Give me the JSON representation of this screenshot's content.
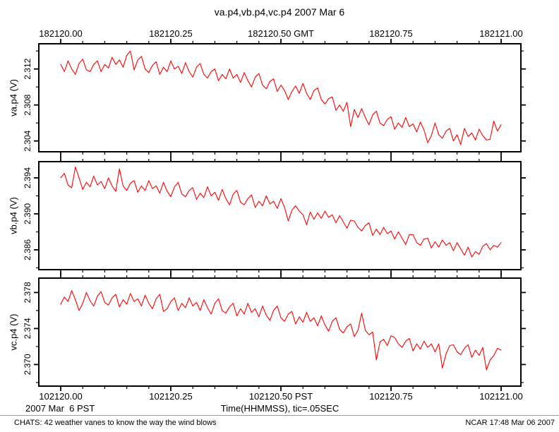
{
  "title": "va.p4,vb.p4,vc.p4 2007 Mar 6",
  "bottom_annotations": {
    "date": "2007 Mar  6 PST",
    "time_note": "Time(HHMMSS), tic=.05SEC"
  },
  "footer": {
    "left": "CHATS: 42 weather vanes to know the way the wind blows",
    "right": "NCAR 17:48 Mar 06 2007"
  },
  "chart_data": {
    "type": "line",
    "title": "va.p4,vb.p4,vc.p4 2007 Mar 6",
    "line_color": "#ff0000",
    "frame_color": "#000000",
    "grid": false,
    "legend": "none",
    "x_axis": {
      "top_ticks": [
        "182120.00",
        "182120.25",
        "182120.50 GMT",
        "182120.75",
        "182121.00"
      ],
      "bottom_ticks": [
        "102120.00",
        "102120.25",
        "102120.50 PST",
        "102120.75",
        "102121.00"
      ],
      "xlabel": "Time(HHMMSS), tic=.05SEC",
      "x_range_seconds": [
        0,
        1
      ],
      "major_tick_seconds": 0.25,
      "minor_tick_seconds": 0.05
    },
    "panels": [
      {
        "name": "va.p4",
        "ylabel": "va.p4 (V)",
        "yticks": [
          2.304,
          2.308,
          2.312
        ],
        "ytick_labels": [
          "2.304",
          "2.308",
          "2.312"
        ],
        "ymin": 2.3028,
        "ymax": 2.3148,
        "minor_ytick_step": 0.002,
        "values": [
          2.3125,
          2.3117,
          2.3129,
          2.312,
          2.3114,
          2.3126,
          2.3131,
          2.3119,
          2.3117,
          2.3125,
          2.3129,
          2.3117,
          2.3125,
          2.3121,
          2.3133,
          2.3125,
          2.313,
          2.3122,
          2.3135,
          2.314,
          2.3119,
          2.313,
          2.3134,
          2.312,
          2.3116,
          2.3124,
          2.3128,
          2.3114,
          2.3122,
          2.3117,
          2.3129,
          2.312,
          2.3123,
          2.3115,
          2.3127,
          2.3117,
          2.3111,
          2.3122,
          2.3126,
          2.3114,
          2.311,
          2.3117,
          2.312,
          2.3107,
          2.3114,
          2.3109,
          2.312,
          2.311,
          2.3114,
          2.3105,
          2.3116,
          2.3107,
          2.31,
          2.3111,
          2.3115,
          2.3102,
          2.3098,
          2.3106,
          2.3109,
          2.3095,
          2.3102,
          2.3096,
          2.3086,
          2.3095,
          2.3101,
          2.3093,
          2.3104,
          2.3093,
          2.3086,
          2.3096,
          2.3099,
          2.3086,
          2.3081,
          2.3087,
          2.3089,
          2.3074,
          2.308,
          2.3073,
          2.3083,
          2.3056,
          2.3075,
          2.3066,
          2.3076,
          2.3066,
          2.3058,
          2.3069,
          2.3073,
          2.306,
          2.3057,
          2.3064,
          2.3067,
          2.3053,
          2.306,
          2.3055,
          2.3066,
          2.3056,
          2.3059,
          2.305,
          2.3061,
          2.3052,
          2.3038,
          2.3046,
          2.306,
          2.3047,
          2.3043,
          2.3051,
          2.3054,
          2.304,
          2.3047,
          2.3036,
          2.3054,
          2.3045,
          2.3049,
          2.3041,
          2.3053,
          2.3046,
          2.3041,
          2.3042,
          2.3062,
          2.3051,
          2.3058
        ]
      },
      {
        "name": "vb.p4",
        "ylabel": "vb.p4 (V)",
        "yticks": [
          2.386,
          2.39,
          2.394
        ],
        "ytick_labels": [
          "2.386",
          "2.390",
          "2.394"
        ],
        "ymin": 2.3838,
        "ymax": 2.3958,
        "minor_ytick_step": 0.002,
        "values": [
          2.394,
          2.3945,
          2.3932,
          2.3929,
          2.3952,
          2.394,
          2.3927,
          2.3935,
          2.393,
          2.3942,
          2.3932,
          2.3936,
          2.3928,
          2.394,
          2.3931,
          2.3925,
          2.395,
          2.3931,
          2.3926,
          2.3934,
          2.3937,
          2.3924,
          2.3931,
          2.3926,
          2.3937,
          2.3928,
          2.3931,
          2.3923,
          2.3935,
          2.3925,
          2.3919,
          2.393,
          2.3935,
          2.3922,
          2.3919,
          2.3926,
          2.3929,
          2.3916,
          2.3923,
          2.3918,
          2.393,
          2.392,
          2.3924,
          2.3915,
          2.3927,
          2.3917,
          2.391,
          2.3922,
          2.3926,
          2.3913,
          2.391,
          2.3917,
          2.3921,
          2.3907,
          2.3914,
          2.3909,
          2.392,
          2.3911,
          2.3914,
          2.3906,
          2.3917,
          2.3907,
          2.3892,
          2.3904,
          2.3909,
          2.3903,
          2.3899,
          2.3888,
          2.3902,
          2.3894,
          2.3901,
          2.3895,
          2.3903,
          2.3896,
          2.3899,
          2.389,
          2.3898,
          2.3891,
          2.3884,
          2.3893,
          2.3892,
          2.3885,
          2.3881,
          2.3887,
          2.389,
          2.3876,
          2.3883,
          2.3877,
          2.3885,
          2.3878,
          2.3881,
          2.3872,
          2.388,
          2.3873,
          2.3866,
          2.3877,
          2.3877,
          2.3868,
          2.3865,
          2.3872,
          2.3873,
          2.3862,
          2.3869,
          2.3863,
          2.3871,
          2.3865,
          2.3868,
          2.3859,
          2.3868,
          2.3861,
          2.3854,
          2.3863,
          2.3852,
          2.3858,
          2.3855,
          2.3864,
          2.3867,
          2.386,
          2.3865,
          2.3863,
          2.3868
        ]
      },
      {
        "name": "vc.p4",
        "ylabel": "vc.p4 (V)",
        "yticks": [
          2.37,
          2.374,
          2.378
        ],
        "ytick_labels": [
          "2.370",
          "2.374",
          "2.378"
        ],
        "ymin": 2.3676,
        "ymax": 2.3796,
        "minor_ytick_step": 0.002,
        "values": [
          2.3767,
          2.3775,
          2.377,
          2.3782,
          2.3772,
          2.376,
          2.3768,
          2.378,
          2.3771,
          2.3765,
          2.3776,
          2.3781,
          2.3769,
          2.3766,
          2.3774,
          2.3778,
          2.3764,
          2.3772,
          2.3767,
          2.3779,
          2.377,
          2.3773,
          2.3765,
          2.3777,
          2.3768,
          2.3762,
          2.3773,
          2.3778,
          2.3759,
          2.3762,
          2.377,
          2.3774,
          2.376,
          2.3768,
          2.3763,
          2.3774,
          2.3765,
          2.3769,
          2.376,
          2.3772,
          2.3763,
          2.3756,
          2.3768,
          2.3773,
          2.376,
          2.3757,
          2.3764,
          2.3768,
          2.3754,
          2.3762,
          2.3756,
          2.3768,
          2.3758,
          2.3762,
          2.3753,
          2.3765,
          2.3755,
          2.3749,
          2.376,
          2.3765,
          2.3752,
          2.3748,
          2.3756,
          2.3759,
          2.3745,
          2.3753,
          2.3747,
          2.3758,
          2.3748,
          2.3752,
          2.3743,
          2.3754,
          2.3744,
          2.3737,
          2.3748,
          2.3752,
          2.3739,
          2.3735,
          2.3742,
          2.3745,
          2.3731,
          2.3738,
          2.3757,
          2.3738,
          2.3733,
          2.3736,
          2.3705,
          2.3725,
          2.3728,
          2.3721,
          2.3732,
          2.373,
          2.3723,
          2.3719,
          2.3726,
          2.3729,
          2.3715,
          2.3723,
          2.3717,
          2.3726,
          2.3719,
          2.3723,
          2.3714,
          2.3723,
          2.3696,
          2.3712,
          2.3721,
          2.3722,
          2.3714,
          2.3711,
          2.3718,
          2.3722,
          2.3708,
          2.3716,
          2.371,
          2.3719,
          2.3694,
          2.3705,
          2.371,
          2.3718,
          2.3716
        ]
      }
    ]
  }
}
